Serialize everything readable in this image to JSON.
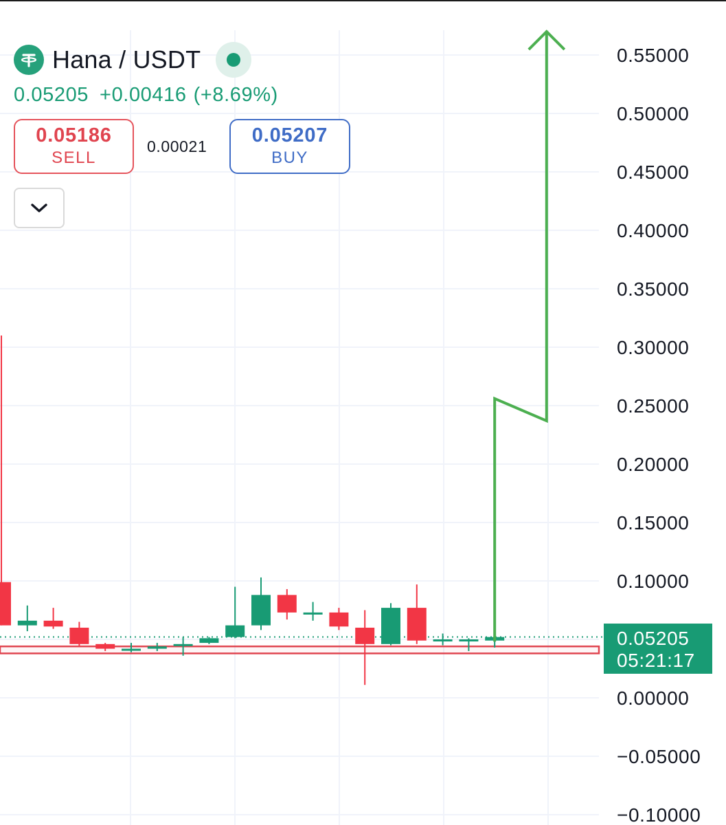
{
  "header": {
    "icon": "tether-icon",
    "symbol": "Hana / USDT",
    "last_price": "0.05205",
    "change": "+0.00416",
    "change_pct": "(+8.69%)",
    "status": "live-dot-icon"
  },
  "trade": {
    "sell_price": "0.05186",
    "sell_label": "SELL",
    "spread": "0.00021",
    "buy_price": "0.05207",
    "buy_label": "BUY"
  },
  "controls": {
    "collapse_icon": "chevron-down-icon"
  },
  "colors": {
    "up": "#189b74",
    "down": "#f23645",
    "sell": "#e0444f",
    "buy": "#3f6cc6",
    "arrow": "#4caf50",
    "grid": "#f0f3fa"
  },
  "chart_data": {
    "type": "candlestick",
    "title": "Hana / USDT",
    "ylim": [
      -0.1,
      0.55
    ],
    "y_ticks": [
      "0.55000",
      "0.50000",
      "0.45000",
      "0.40000",
      "0.35000",
      "0.30000",
      "0.25000",
      "0.20000",
      "0.15000",
      "0.10000",
      "0.05205",
      "0.00000",
      "−0.05000",
      "−0.10000"
    ],
    "grid": true,
    "candles": [
      {
        "open": 0.099,
        "high": 0.31,
        "low": 0.062,
        "close": 0.062
      },
      {
        "open": 0.062,
        "high": 0.079,
        "low": 0.057,
        "close": 0.066
      },
      {
        "open": 0.066,
        "high": 0.077,
        "low": 0.059,
        "close": 0.061
      },
      {
        "open": 0.06,
        "high": 0.065,
        "low": 0.044,
        "close": 0.046
      },
      {
        "open": 0.046,
        "high": 0.047,
        "low": 0.04,
        "close": 0.042
      },
      {
        "open": 0.042,
        "high": 0.047,
        "low": 0.039,
        "close": 0.042
      },
      {
        "open": 0.042,
        "high": 0.047,
        "low": 0.04,
        "close": 0.044
      },
      {
        "open": 0.045,
        "high": 0.052,
        "low": 0.036,
        "close": 0.046
      },
      {
        "open": 0.047,
        "high": 0.052,
        "low": 0.046,
        "close": 0.051
      },
      {
        "open": 0.052,
        "high": 0.095,
        "low": 0.051,
        "close": 0.062
      },
      {
        "open": 0.062,
        "high": 0.103,
        "low": 0.058,
        "close": 0.088
      },
      {
        "open": 0.088,
        "high": 0.093,
        "low": 0.067,
        "close": 0.073
      },
      {
        "open": 0.073,
        "high": 0.082,
        "low": 0.066,
        "close": 0.073
      },
      {
        "open": 0.073,
        "high": 0.077,
        "low": 0.058,
        "close": 0.061
      },
      {
        "open": 0.06,
        "high": 0.075,
        "low": 0.011,
        "close": 0.046
      },
      {
        "open": 0.046,
        "high": 0.081,
        "low": 0.045,
        "close": 0.077
      },
      {
        "open": 0.077,
        "high": 0.097,
        "low": 0.046,
        "close": 0.049
      },
      {
        "open": 0.05,
        "high": 0.055,
        "low": 0.045,
        "close": 0.05
      },
      {
        "open": 0.05,
        "high": 0.051,
        "low": 0.04,
        "close": 0.05
      },
      {
        "open": 0.049,
        "high": 0.054,
        "low": 0.043,
        "close": 0.052
      }
    ],
    "last_price_line": 0.05205,
    "price_label": "0.05205",
    "countdown": "05:21:17",
    "annotations": {
      "highlight_band": [
        0.038,
        0.044
      ],
      "arrow_path": [
        {
          "x": 19,
          "y": 0.048
        },
        {
          "x": 19,
          "y": 0.256
        },
        {
          "x": 21,
          "y": 0.237
        },
        {
          "x": 21,
          "y": 0.57
        }
      ]
    }
  }
}
